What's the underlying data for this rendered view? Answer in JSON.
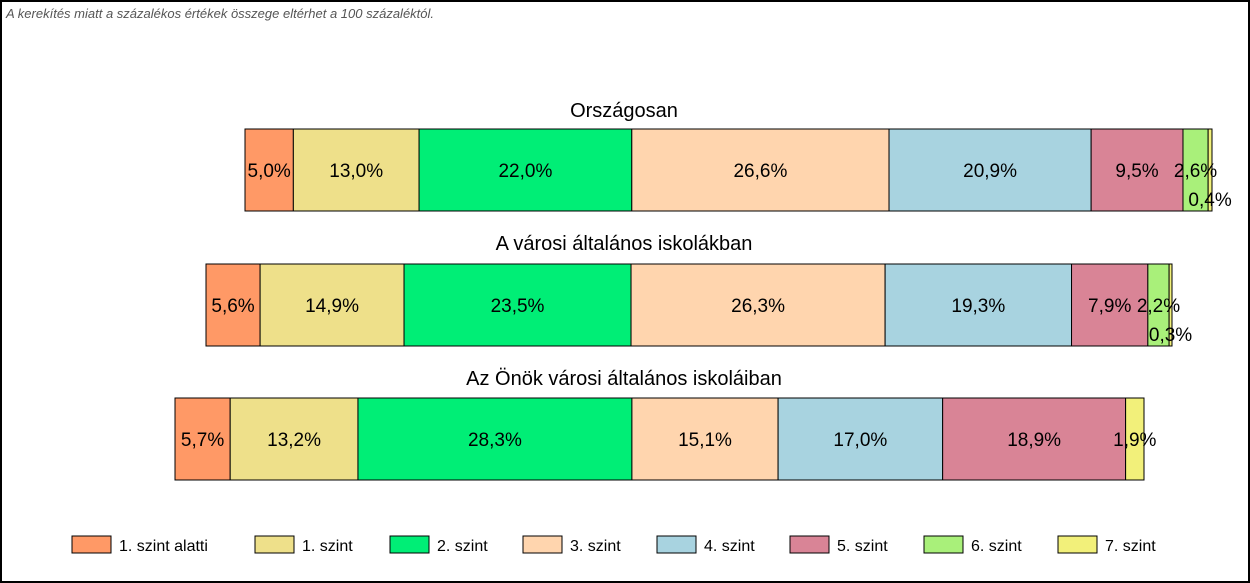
{
  "note": "A kerekítés miatt a  százalékos értékek összege eltérhet a 100 százaléktól.",
  "chart_data": {
    "type": "bar",
    "orientation": "horizontal-stacked-100",
    "categories": [
      "1. szint alatti",
      "1. szint",
      "2. szint",
      "3. szint",
      "4. szint",
      "5. szint",
      "6. szint",
      "7. szint"
    ],
    "colors": [
      "#FF9966",
      "#EEE08A",
      "#00EE76",
      "#FFD5AE",
      "#A8D3E0",
      "#D98496",
      "#A9F07A",
      "#F2F07A"
    ],
    "legend_position": "bottom",
    "bars": [
      {
        "title": "Országosan",
        "values": [
          5.0,
          13.0,
          22.0,
          26.6,
          20.9,
          9.5,
          2.6,
          0.4
        ],
        "labels": [
          "5,0%",
          "13,0%",
          "22,0%",
          "26,6%",
          "20,9%",
          "9,5%",
          "2,6%",
          "0,4%"
        ]
      },
      {
        "title": "A városi általános iskolákban",
        "values": [
          5.6,
          14.9,
          23.5,
          26.3,
          19.3,
          7.9,
          2.2,
          0.3
        ],
        "labels": [
          "5,6%",
          "14,9%",
          "23,5%",
          "26,3%",
          "19,3%",
          "7,9%",
          "2,2%",
          "0,3%"
        ]
      },
      {
        "title": "Az Önök városi általános iskoláiban",
        "values": [
          5.7,
          13.2,
          28.3,
          15.1,
          17.0,
          18.9,
          0.0,
          1.9
        ],
        "labels": [
          "5,7%",
          "13,2%",
          "28,3%",
          "15,1%",
          "17,0%",
          "18,9%",
          "",
          "1,9%"
        ]
      }
    ]
  }
}
